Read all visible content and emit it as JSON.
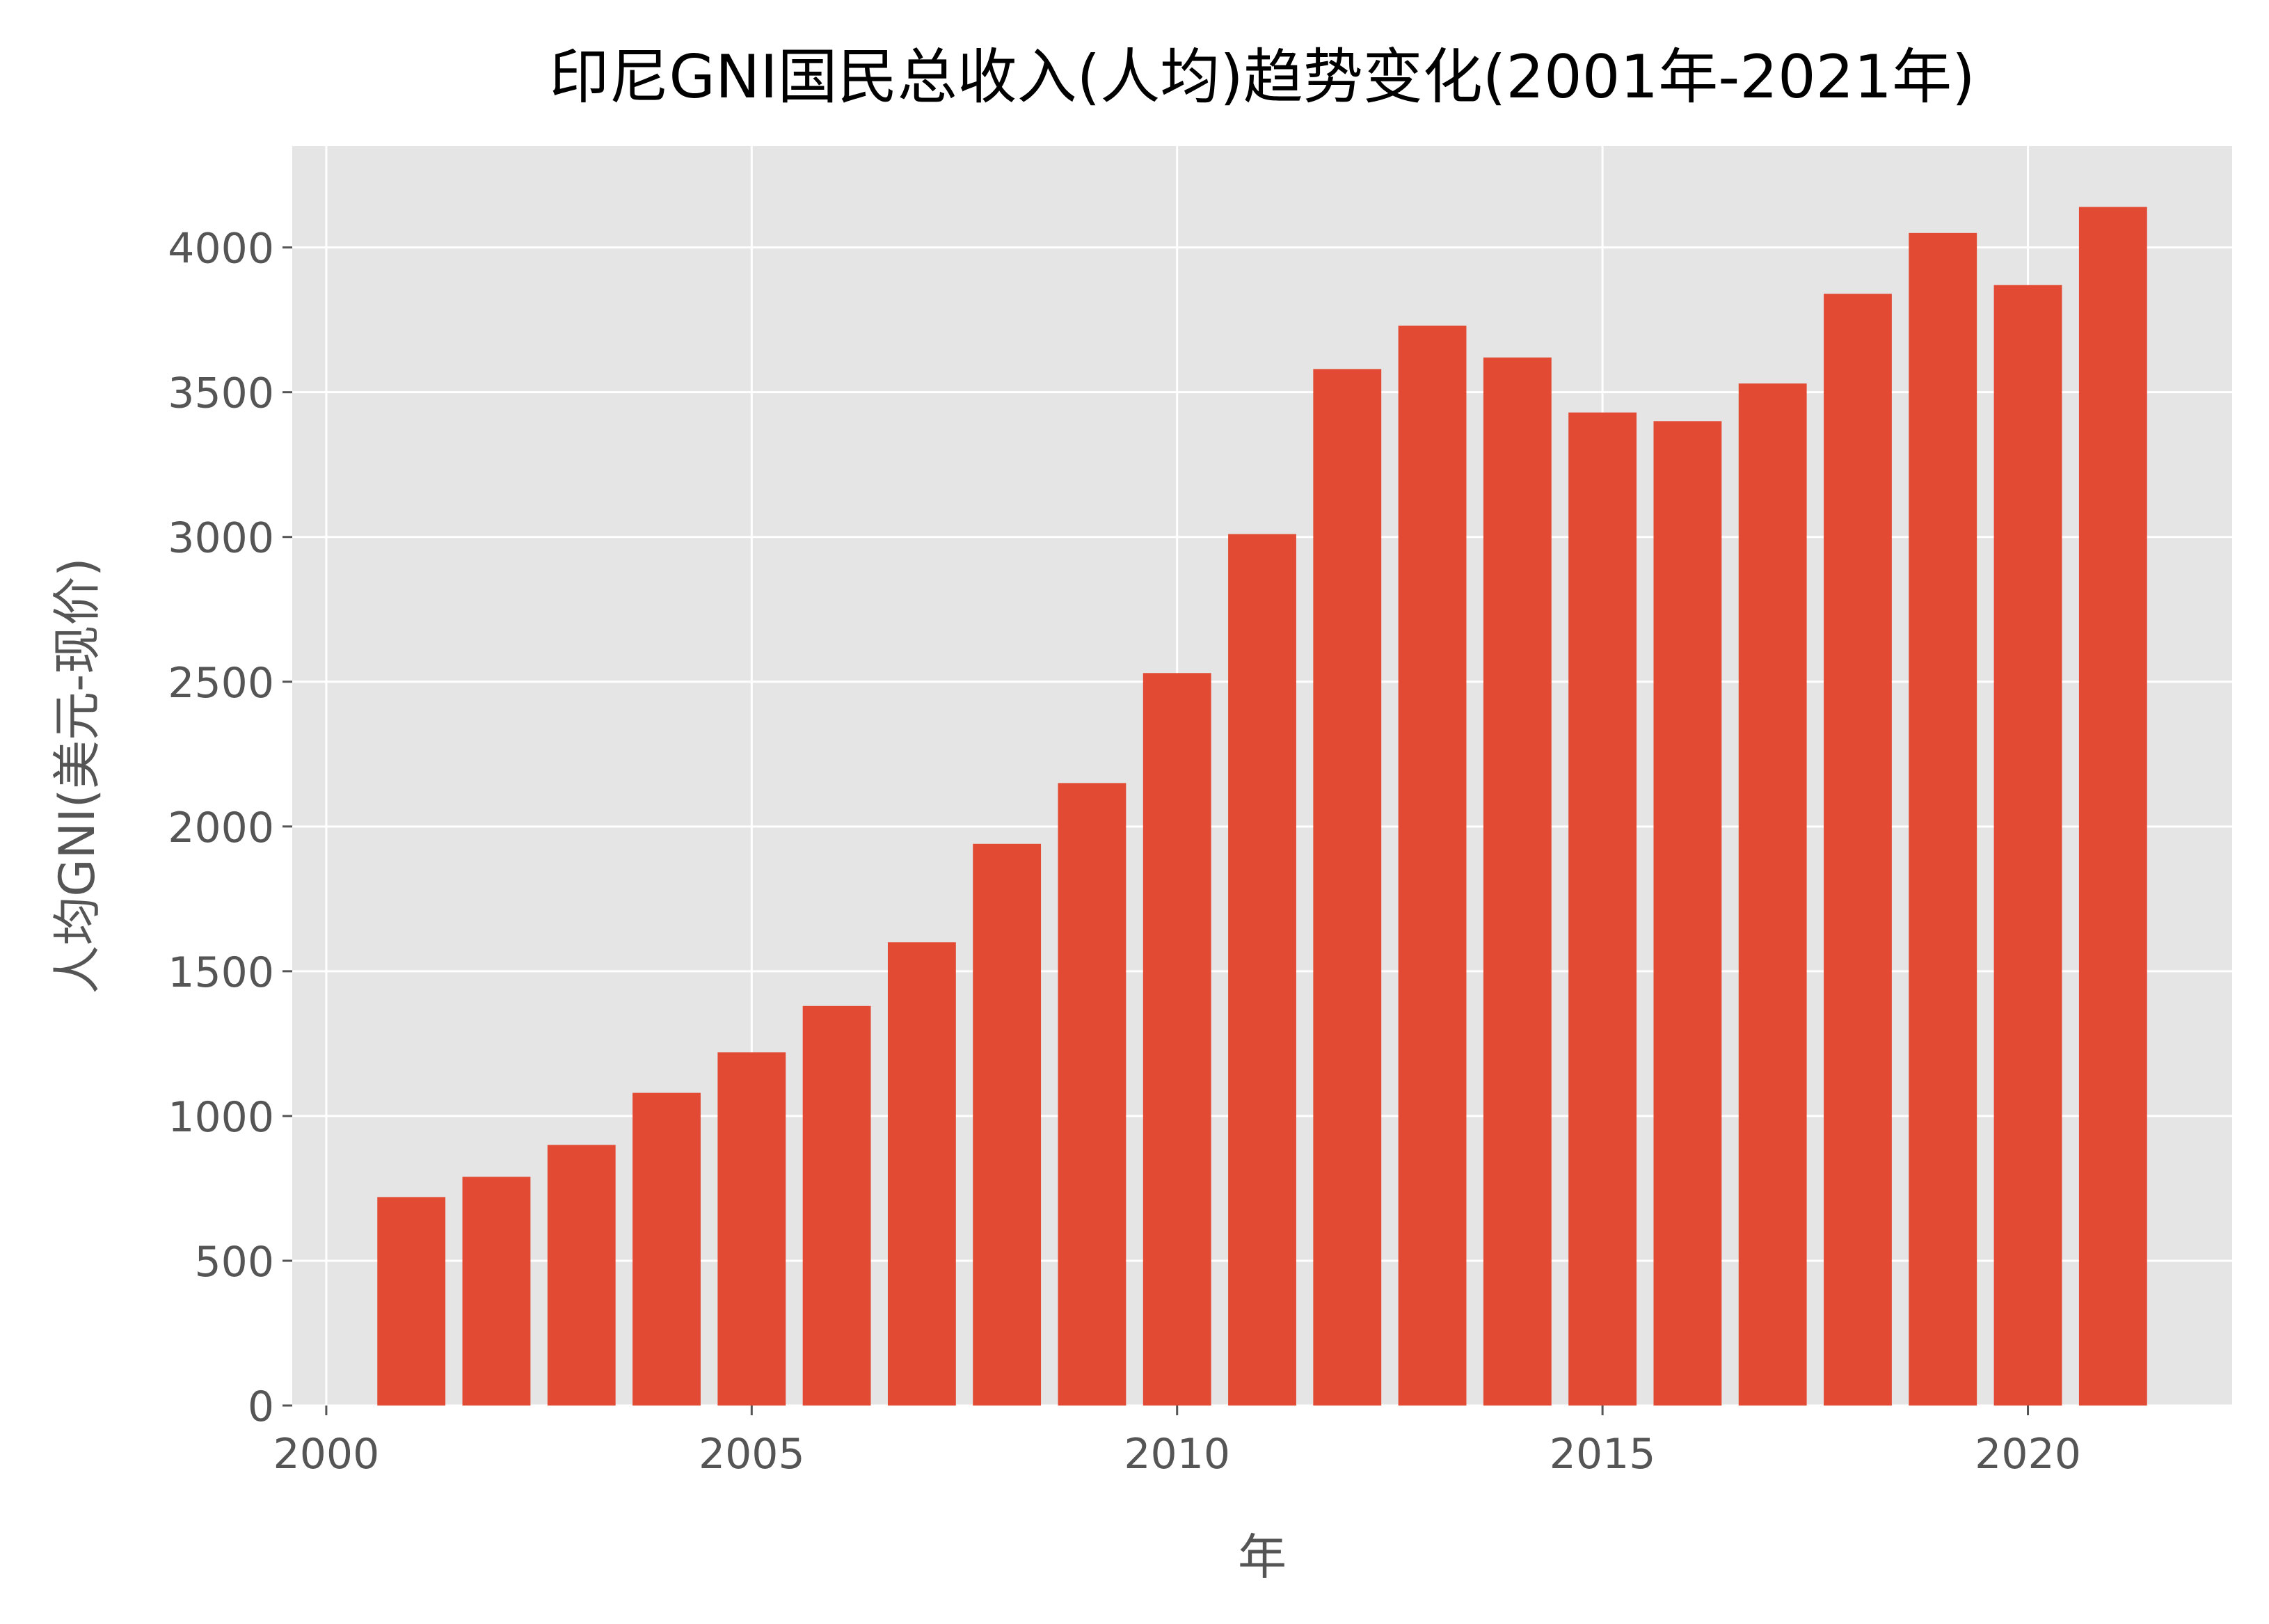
{
  "chart_data": {
    "type": "bar",
    "title": "印尼GNI国民总收入(人均)趋势变化(2001年-2021年)",
    "xlabel": "年",
    "ylabel": "人均GNI(美元-现价)",
    "x": [
      2001,
      2002,
      2003,
      2004,
      2005,
      2006,
      2007,
      2008,
      2009,
      2010,
      2011,
      2012,
      2013,
      2014,
      2015,
      2016,
      2017,
      2018,
      2019,
      2020,
      2021
    ],
    "values": [
      720,
      790,
      900,
      1080,
      1220,
      1380,
      1600,
      1940,
      2150,
      2530,
      3010,
      3580,
      3730,
      3620,
      3430,
      3400,
      3530,
      3840,
      4050,
      3870,
      4140
    ],
    "xlim": [
      1999.6,
      2022.4
    ],
    "ylim": [
      0,
      4350
    ],
    "x_ticks": [
      2000,
      2005,
      2010,
      2015,
      2020
    ],
    "x_tick_labels": [
      "2000",
      "2005",
      "2010",
      "2015",
      "2020"
    ],
    "y_ticks": [
      0,
      500,
      1000,
      1500,
      2000,
      2500,
      3000,
      3500,
      4000
    ],
    "y_tick_labels": [
      "0",
      "500",
      "1000",
      "1500",
      "2000",
      "2500",
      "3000",
      "3500",
      "4000"
    ],
    "grid": true,
    "style": "ggplot",
    "colors": {
      "bar": "#E24A33",
      "plot_background": "#E5E5E5",
      "grid": "#FFFFFF",
      "tick_text": "#555555",
      "title_text": "#000000"
    }
  }
}
